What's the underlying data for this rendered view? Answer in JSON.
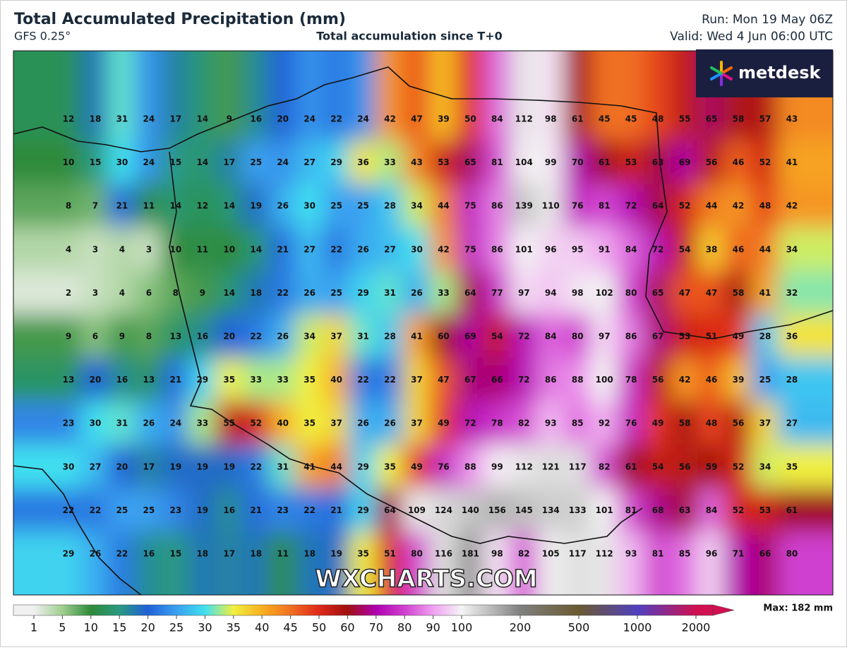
{
  "header": {
    "title": "Total Accumulated Precipitation (mm)",
    "model": "GFS 0.25°",
    "subtitle": "Total accumulation since T+0",
    "run": "Run: Mon 19 May 06Z",
    "valid": "Valid: Wed 4 Jun 06:00 UTC"
  },
  "logo": "metdesk",
  "watermark": "WXCHARTS.COM",
  "grid": {
    "rows": [
      [
        12,
        18,
        31,
        24,
        17,
        14,
        9,
        16,
        20,
        24,
        22,
        24,
        42,
        47,
        39,
        50,
        84,
        112,
        98,
        61,
        45,
        45,
        48,
        55,
        65,
        58,
        57,
        43
      ],
      [
        10,
        15,
        30,
        24,
        15,
        14,
        17,
        25,
        24,
        27,
        29,
        36,
        33,
        43,
        53,
        65,
        81,
        104,
        99,
        70,
        61,
        53,
        63,
        69,
        56,
        46,
        52,
        41
      ],
      [
        8,
        7,
        21,
        11,
        14,
        12,
        14,
        19,
        26,
        30,
        25,
        25,
        28,
        34,
        44,
        75,
        86,
        139,
        110,
        76,
        81,
        72,
        64,
        52,
        44,
        42,
        48,
        42
      ],
      [
        4,
        3,
        4,
        3,
        10,
        11,
        10,
        14,
        21,
        27,
        22,
        26,
        27,
        30,
        42,
        75,
        86,
        101,
        96,
        95,
        91,
        84,
        72,
        54,
        38,
        46,
        44,
        34
      ],
      [
        2,
        3,
        4,
        6,
        8,
        9,
        14,
        18,
        22,
        26,
        25,
        29,
        31,
        26,
        33,
        64,
        77,
        97,
        94,
        98,
        102,
        80,
        65,
        47,
        47,
        58,
        41,
        32
      ],
      [
        9,
        6,
        9,
        8,
        13,
        16,
        20,
        22,
        26,
        34,
        37,
        31,
        28,
        41,
        60,
        69,
        54,
        72,
        84,
        80,
        97,
        86,
        67,
        53,
        51,
        49,
        28,
        36
      ],
      [
        13,
        20,
        16,
        13,
        21,
        29,
        35,
        33,
        33,
        35,
        40,
        22,
        22,
        37,
        47,
        67,
        66,
        72,
        86,
        88,
        100,
        78,
        56,
        42,
        46,
        39,
        25,
        28
      ],
      [
        23,
        30,
        31,
        26,
        24,
        33,
        55,
        52,
        40,
        35,
        37,
        26,
        26,
        37,
        49,
        72,
        78,
        82,
        93,
        85,
        92,
        76,
        49,
        58,
        48,
        56,
        37,
        27
      ],
      [
        30,
        27,
        20,
        17,
        19,
        19,
        19,
        22,
        31,
        41,
        44,
        29,
        35,
        49,
        76,
        88,
        99,
        112,
        121,
        117,
        82,
        61,
        54,
        56,
        59,
        52,
        34,
        35
      ],
      [
        22,
        22,
        25,
        25,
        23,
        19,
        16,
        21,
        23,
        22,
        21,
        29,
        64,
        109,
        124,
        140,
        156,
        145,
        134,
        133,
        101,
        81,
        68,
        63,
        84,
        52,
        53,
        61
      ],
      [
        29,
        26,
        22,
        16,
        15,
        18,
        17,
        18,
        11,
        18,
        19,
        35,
        51,
        80,
        116,
        181,
        98,
        82,
        105,
        117,
        112,
        93,
        81,
        85,
        96,
        71,
        66,
        80
      ]
    ]
  },
  "colorbar": {
    "ticks": [
      1,
      5,
      10,
      15,
      20,
      25,
      30,
      35,
      40,
      45,
      50,
      60,
      70,
      80,
      90,
      100,
      200,
      500,
      1000,
      2000
    ],
    "colors": [
      "#f0f0f0",
      "#9fcf8f",
      "#2e8b3a",
      "#2a9a80",
      "#2060d8",
      "#3aa0f0",
      "#40e0f0",
      "#f0f040",
      "#f8b020",
      "#f07020",
      "#e02818",
      "#a01010",
      "#b000b0",
      "#d040d0",
      "#f0a0f0",
      "#f4f4f4",
      "#808080",
      "#6a5a30",
      "#5040c0",
      "#d01050"
    ],
    "max_label": "Max: 182 mm"
  }
}
